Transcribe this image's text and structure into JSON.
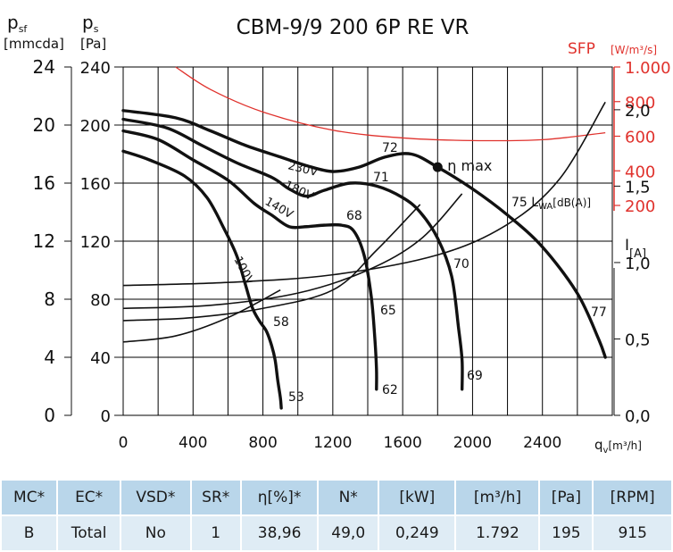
{
  "chart_data": {
    "type": "line",
    "title": "CBM-9/9 200 6P RE VR",
    "axes": {
      "x_label": "q",
      "x_label_sub": "v",
      "x_unit": "[m³/h]",
      "x_ticks": [
        0,
        400,
        800,
        1200,
        1600,
        2000,
        2400
      ],
      "xlim": [
        0,
        2800
      ],
      "y_left_outer_label": "p",
      "y_left_outer_sub": "sf",
      "y_left_outer_unit": "[mmcda]",
      "y_left_outer_ticks": [
        0,
        4,
        8,
        12,
        16,
        20,
        24
      ],
      "y_left_inner_label": "p",
      "y_left_inner_sub": "s",
      "y_left_inner_unit": "[Pa]",
      "y_left_inner_ticks": [
        0,
        40,
        80,
        120,
        160,
        200,
        240
      ],
      "ylim": [
        0,
        240
      ],
      "y_right_sfp_label": "SFP",
      "y_right_sfp_unit": "[W/m³/s]",
      "y_right_sfp_ticks": [
        "1.000",
        "800",
        "600",
        "400",
        "200"
      ],
      "y_right_current_label": "I",
      "y_right_current_unit": "[A]",
      "y_right_current_ticks": [
        "2,0",
        "1,5",
        "1,0",
        "0,5",
        "0,0"
      ],
      "y_right_current_range": [
        0,
        2.2
      ]
    },
    "colors": {
      "curve": "#000000",
      "sfp": "#e0322d",
      "grid": "#000000"
    },
    "pressure_series": [
      {
        "name": "230V",
        "points": [
          [
            0,
            210
          ],
          [
            300,
            205
          ],
          [
            500,
            196
          ],
          [
            700,
            186
          ],
          [
            900,
            178
          ],
          [
            1050,
            172
          ],
          [
            1200,
            168
          ],
          [
            1350,
            171
          ],
          [
            1500,
            178
          ],
          [
            1650,
            180
          ],
          [
            1800,
            171
          ],
          [
            2000,
            156
          ],
          [
            2200,
            138
          ],
          [
            2400,
            116
          ],
          [
            2600,
            84
          ],
          [
            2720,
            53
          ],
          [
            2760,
            40
          ]
        ]
      },
      {
        "name": "180V",
        "points": [
          [
            0,
            204
          ],
          [
            250,
            198
          ],
          [
            450,
            186
          ],
          [
            650,
            174
          ],
          [
            850,
            164
          ],
          [
            950,
            156
          ],
          [
            1050,
            151
          ],
          [
            1150,
            155
          ],
          [
            1300,
            160
          ],
          [
            1450,
            158
          ],
          [
            1600,
            150
          ],
          [
            1700,
            140
          ],
          [
            1800,
            122
          ],
          [
            1880,
            96
          ],
          [
            1920,
            60
          ],
          [
            1940,
            38
          ],
          [
            1940,
            18
          ]
        ]
      },
      {
        "name": "140V",
        "points": [
          [
            0,
            196
          ],
          [
            200,
            190
          ],
          [
            400,
            176
          ],
          [
            600,
            162
          ],
          [
            750,
            146
          ],
          [
            850,
            138
          ],
          [
            950,
            130
          ],
          [
            1050,
            130
          ],
          [
            1150,
            131
          ],
          [
            1250,
            131
          ],
          [
            1320,
            127
          ],
          [
            1380,
            110
          ],
          [
            1420,
            82
          ],
          [
            1440,
            54
          ],
          [
            1450,
            32
          ],
          [
            1450,
            18
          ]
        ]
      },
      {
        "name": "100V",
        "points": [
          [
            0,
            182
          ],
          [
            150,
            176
          ],
          [
            350,
            165
          ],
          [
            480,
            150
          ],
          [
            580,
            128
          ],
          [
            650,
            110
          ],
          [
            700,
            90
          ],
          [
            740,
            74
          ],
          [
            780,
            65
          ],
          [
            820,
            58
          ],
          [
            850,
            48
          ],
          [
            870,
            38
          ],
          [
            885,
            24
          ],
          [
            900,
            12
          ],
          [
            905,
            5
          ]
        ]
      }
    ],
    "current_series": [
      {
        "name": "100V",
        "points": [
          [
            0,
            0.48
          ],
          [
            300,
            0.52
          ],
          [
            600,
            0.64
          ],
          [
            900,
            0.82
          ]
        ]
      },
      {
        "name": "140V",
        "points": [
          [
            0,
            0.62
          ],
          [
            400,
            0.64
          ],
          [
            800,
            0.7
          ],
          [
            1200,
            0.82
          ],
          [
            1450,
            1.08
          ],
          [
            1700,
            1.38
          ]
        ]
      },
      {
        "name": "180V",
        "points": [
          [
            0,
            0.7
          ],
          [
            500,
            0.72
          ],
          [
            1000,
            0.8
          ],
          [
            1400,
            0.95
          ],
          [
            1700,
            1.15
          ],
          [
            1940,
            1.45
          ]
        ]
      },
      {
        "name": "230V",
        "points": [
          [
            0,
            0.85
          ],
          [
            600,
            0.87
          ],
          [
            1200,
            0.92
          ],
          [
            1800,
            1.05
          ],
          [
            2200,
            1.25
          ],
          [
            2500,
            1.55
          ],
          [
            2760,
            2.05
          ]
        ]
      }
    ],
    "sfp_curve": {
      "name": "SFP",
      "points": [
        [
          300,
          1000
        ],
        [
          500,
          870
        ],
        [
          800,
          740
        ],
        [
          1200,
          635
        ],
        [
          1600,
          590
        ],
        [
          2000,
          575
        ],
        [
          2400,
          580
        ],
        [
          2760,
          620
        ]
      ]
    },
    "sfp_scale": {
      "px_per_unit_ref": [
        [
          1000,
          75
        ],
        [
          200,
          230
        ]
      ]
    },
    "annotations": {
      "voltage_labels": [
        "230V",
        "180V",
        "140V",
        "100V"
      ],
      "sound_levels": [
        "72",
        "71",
        "68",
        "58",
        "65",
        "70",
        "77",
        "53",
        "62",
        "69"
      ],
      "sound_level_label": "75 L",
      "sound_level_sub": "WA",
      "sound_level_unit": "[dB(A)]",
      "eta_max_label": "η max",
      "eta_max_point": [
        1800,
        171
      ]
    }
  },
  "table": {
    "headers": [
      "MC*",
      "EC*",
      "VSD*",
      "SR*",
      "η[%]*",
      "N*",
      "[kW]",
      "[m³/h]",
      "[Pa]",
      "[RPM]"
    ],
    "row": [
      "B",
      "Total",
      "No",
      "1",
      "38,96",
      "49,0",
      "0,249",
      "1.792",
      "195",
      "915"
    ]
  }
}
